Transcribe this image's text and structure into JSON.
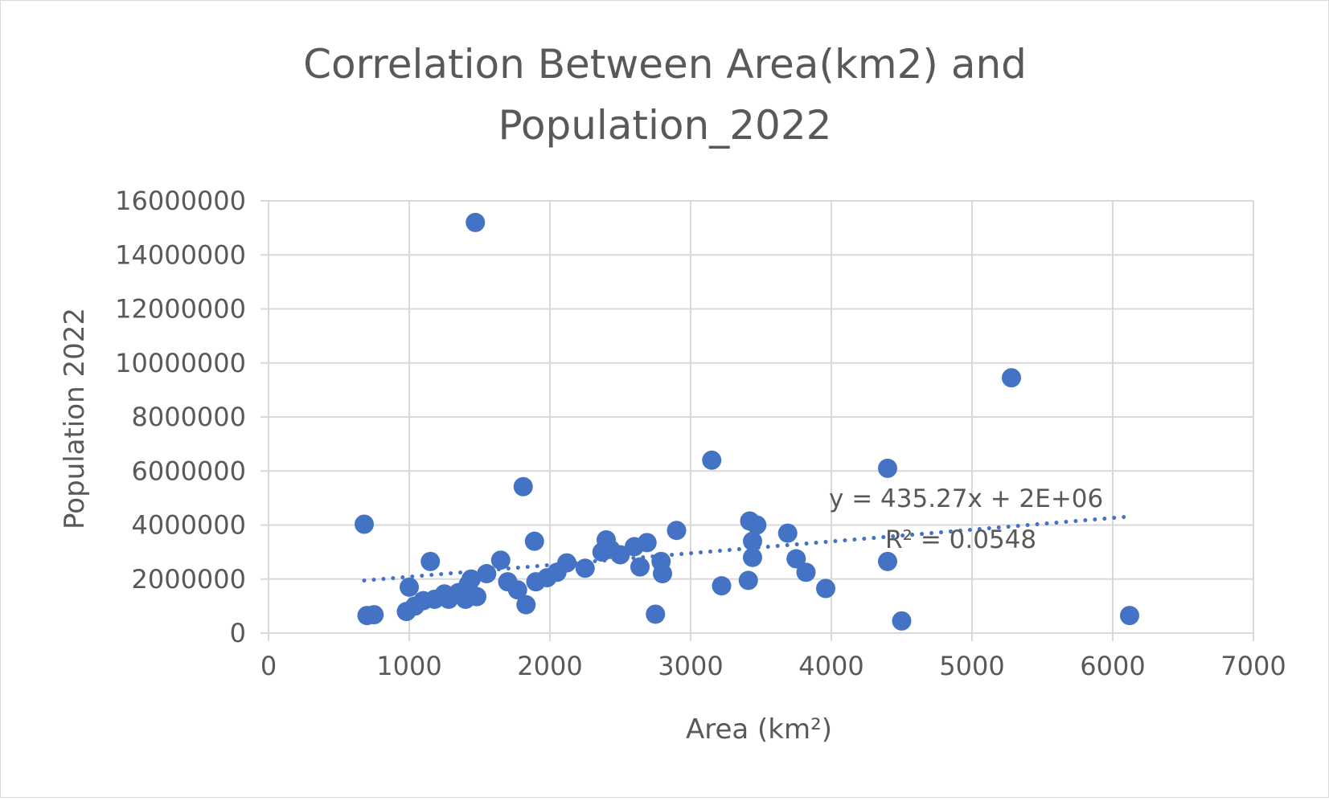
{
  "chart_data": {
    "type": "scatter",
    "title_lines": [
      "Correlation Between Area(km2) and",
      "Population_2022"
    ],
    "xlabel": "Area (km²)",
    "ylabel": "Population 2022",
    "xlim": [
      0,
      7000
    ],
    "ylim": [
      0,
      16000000
    ],
    "x_ticks": [
      0,
      1000,
      2000,
      3000,
      4000,
      5000,
      6000,
      7000
    ],
    "y_ticks": [
      0,
      2000000,
      4000000,
      6000000,
      8000000,
      10000000,
      12000000,
      14000000,
      16000000
    ],
    "grid": true,
    "legend": "none",
    "colors": {
      "marker": "#4472c4",
      "trendline": "#4472c4",
      "grid": "#d9d9d9",
      "text": "#595959"
    },
    "trendline": {
      "slope": 435.27,
      "intercept": 1650000,
      "x_range": [
        680,
        6120
      ],
      "equation_label": "y = 435.27x + 2E+06",
      "r2_label": "R² = 0.0548"
    },
    "series": [
      {
        "name": "Population 2022",
        "points": [
          [
            680,
            4030000
          ],
          [
            700,
            650000
          ],
          [
            750,
            680000
          ],
          [
            980,
            800000
          ],
          [
            1000,
            1700000
          ],
          [
            1040,
            1000000
          ],
          [
            1100,
            1200000
          ],
          [
            1150,
            2650000
          ],
          [
            1180,
            1250000
          ],
          [
            1250,
            1450000
          ],
          [
            1280,
            1250000
          ],
          [
            1350,
            1500000
          ],
          [
            1400,
            1250000
          ],
          [
            1420,
            1800000
          ],
          [
            1440,
            2000000
          ],
          [
            1470,
            15200000
          ],
          [
            1480,
            1350000
          ],
          [
            1550,
            2200000
          ],
          [
            1650,
            2700000
          ],
          [
            1700,
            1900000
          ],
          [
            1770,
            1600000
          ],
          [
            1810,
            5420000
          ],
          [
            1830,
            1050000
          ],
          [
            1890,
            3400000
          ],
          [
            1900,
            1900000
          ],
          [
            1980,
            2050000
          ],
          [
            2050,
            2250000
          ],
          [
            2120,
            2600000
          ],
          [
            2250,
            2400000
          ],
          [
            2370,
            3000000
          ],
          [
            2400,
            3450000
          ],
          [
            2430,
            3100000
          ],
          [
            2500,
            2900000
          ],
          [
            2600,
            3200000
          ],
          [
            2640,
            2450000
          ],
          [
            2690,
            3350000
          ],
          [
            2750,
            700000
          ],
          [
            2790,
            2650000
          ],
          [
            2800,
            2200000
          ],
          [
            2900,
            3800000
          ],
          [
            3150,
            6400000
          ],
          [
            3220,
            1750000
          ],
          [
            3410,
            1950000
          ],
          [
            3420,
            4150000
          ],
          [
            3440,
            3400000
          ],
          [
            3440,
            2800000
          ],
          [
            3470,
            4000000
          ],
          [
            3690,
            3700000
          ],
          [
            3750,
            2750000
          ],
          [
            3820,
            2250000
          ],
          [
            3960,
            1650000
          ],
          [
            4400,
            2650000
          ],
          [
            4400,
            6100000
          ],
          [
            4500,
            450000
          ],
          [
            5280,
            9450000
          ],
          [
            6120,
            650000
          ]
        ]
      }
    ]
  }
}
